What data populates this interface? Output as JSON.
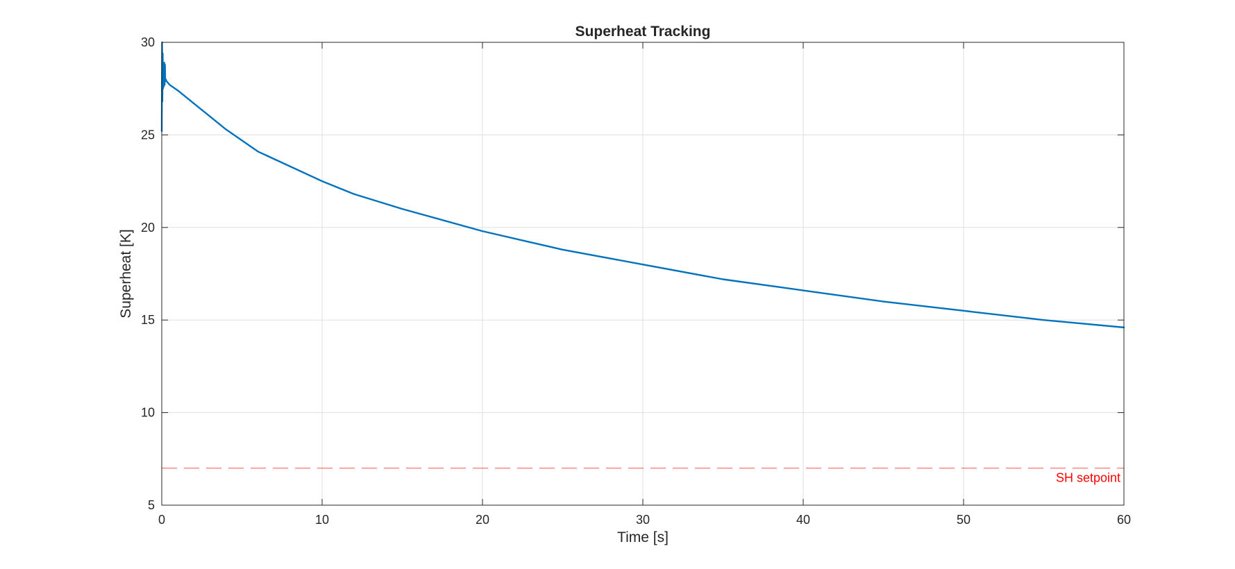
{
  "chart_data": {
    "type": "line",
    "title": "Superheat Tracking",
    "xlabel": "Time [s]",
    "ylabel": "Superheat [K]",
    "xlim": [
      0,
      60
    ],
    "ylim": [
      5,
      30
    ],
    "xticks": [
      "0",
      "10",
      "20",
      "30",
      "40",
      "50",
      "60"
    ],
    "yticks": [
      "5",
      "10",
      "15",
      "20",
      "25",
      "30"
    ],
    "grid": true,
    "series": [
      {
        "color": "#0072bd",
        "x": [
          0,
          0.02,
          0.04,
          0.06,
          0.08,
          0.1,
          0.12,
          0.14,
          0.16,
          0.18,
          0.2,
          0.22,
          0.25,
          0.3,
          0.5,
          1,
          2,
          3,
          4,
          5,
          6,
          8,
          10,
          12,
          15,
          20,
          25,
          30,
          35,
          40,
          45,
          50,
          55,
          60
        ],
        "y": [
          25.2,
          30,
          26.8,
          29.4,
          27.5,
          28.6,
          27.6,
          28.4,
          28.9,
          27.7,
          28.8,
          27.9,
          28,
          27.9,
          27.7,
          27.4,
          26.7,
          26,
          25.3,
          24.7,
          24.1,
          23.3,
          22.5,
          21.8,
          21,
          19.8,
          18.8,
          18,
          17.2,
          16.6,
          16,
          15.5,
          15,
          14.6
        ]
      }
    ],
    "reference_line": {
      "y": 7,
      "label": "SH setpoint",
      "color": "#ff0000",
      "style": "dashed"
    },
    "colors": {
      "axis": "#262626",
      "grid": "#dfdfdf",
      "line": "#0072bd",
      "setpoint": "#ff0000"
    }
  }
}
